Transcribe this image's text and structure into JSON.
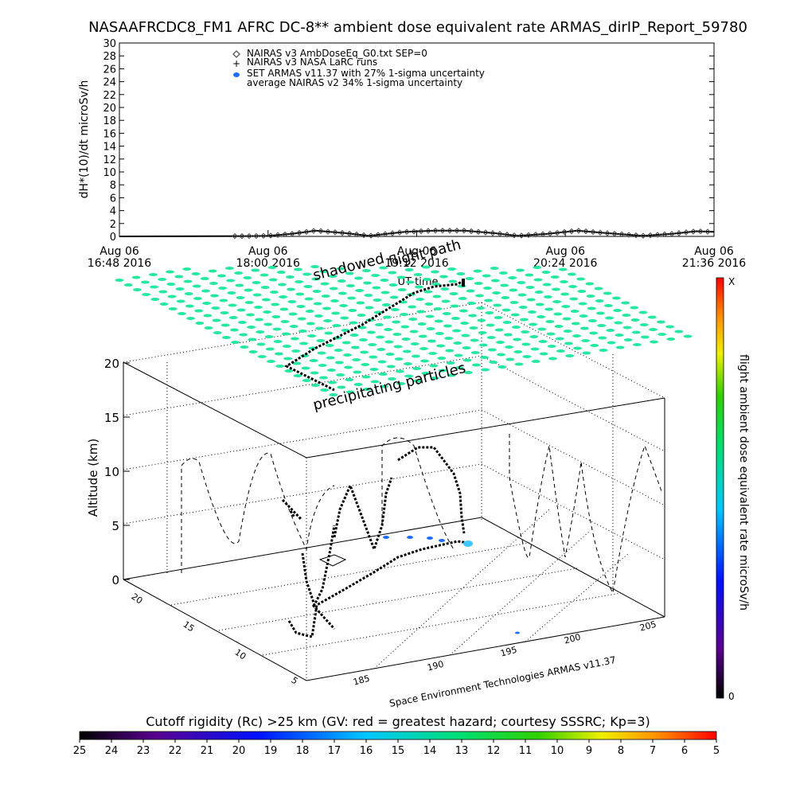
{
  "title": "NASAAFRCDC8_FM1 AFRC DC-8** ambient dose equivalent rate ARMAS_dirIP_Report_59780",
  "chart_data": [
    {
      "type": "scatter",
      "panel": "time-series",
      "ylabel": "dH*(10)/dt microSv/h",
      "ylim": [
        0,
        30
      ],
      "yticks": [
        0,
        2,
        4,
        6,
        8,
        10,
        12,
        14,
        16,
        18,
        20,
        22,
        24,
        26,
        28,
        30
      ],
      "xlabel": "UT time",
      "xticks": [
        {
          "day": "Aug 06",
          "time": "16:48 2016"
        },
        {
          "day": "Aug 06",
          "time": "18:00 2016"
        },
        {
          "day": "Aug 06",
          "time": "19:12 2016"
        },
        {
          "day": "Aug 06",
          "time": "20:24 2016"
        },
        {
          "day": "Aug 06",
          "time": "21:36 2016"
        }
      ],
      "legend": [
        {
          "symbol": "diamond",
          "label": "NAIRAS v3 AmbDoseEq_G0.txt SEP=0"
        },
        {
          "symbol": "plus",
          "label": "NAIRAS v3 NASA LaRC runs"
        },
        {
          "symbol": "blue-dot",
          "label": "SET ARMAS v11.37 with 27% 1-sigma uncertainty"
        },
        {
          "symbol": "none",
          "label": "average NAIRAS v2 34% 1-sigma uncertainty"
        }
      ],
      "legend_position": "top-left",
      "series": [
        {
          "values_approx": [
            [
              0.0,
              0.0
            ],
            [
              0.22,
              0.05
            ],
            [
              0.25,
              0.1
            ],
            [
              0.29,
              0.4
            ],
            [
              0.33,
              0.9
            ],
            [
              0.38,
              0.5
            ],
            [
              0.42,
              0.1
            ],
            [
              0.48,
              0.7
            ],
            [
              0.53,
              0.9
            ],
            [
              0.58,
              0.9
            ],
            [
              0.63,
              0.5
            ],
            [
              0.67,
              0.1
            ],
            [
              0.72,
              0.4
            ],
            [
              0.77,
              0.9
            ],
            [
              0.82,
              0.5
            ],
            [
              0.88,
              0.1
            ],
            [
              0.93,
              0.4
            ],
            [
              0.97,
              0.8
            ],
            [
              1.0,
              0.7
            ]
          ]
        }
      ]
    },
    {
      "type": "3d-flight-track",
      "panel": "3d",
      "zlabel": "Altitude (km)",
      "zticks": [
        0,
        5,
        10,
        15,
        20
      ],
      "rc_axis_ticks": [
        "20",
        "15",
        "10",
        "5"
      ],
      "lon_axis_ticks": [
        "185",
        "190",
        "195",
        "200",
        "205"
      ],
      "annotations": [
        "shadowed",
        "flight path",
        "precipitating particles"
      ],
      "credit": "Space Environment Technologies ARMAS v11.37"
    }
  ],
  "colorbar_right": {
    "label": "flight ambient dose equivalent rate microSv/h",
    "top": "X",
    "bottom": "0"
  },
  "colorbar_bottom": {
    "title": "Cutoff rigidity (Rc) >25 km (GV: red = greatest hazard; courtesy SSSRC; Kp=3)",
    "ticks": [
      "25",
      "24",
      "23",
      "22",
      "21",
      "20",
      "19",
      "18",
      "17",
      "16",
      "15",
      "14",
      "13",
      "12",
      "11",
      "10",
      "9",
      "8",
      "7",
      "6",
      "5"
    ]
  },
  "colors": {
    "grid_dots": "#26e8a0",
    "track": "#000000",
    "armas_points": "#1e6cff",
    "armas_hot": "#41c8ff"
  }
}
